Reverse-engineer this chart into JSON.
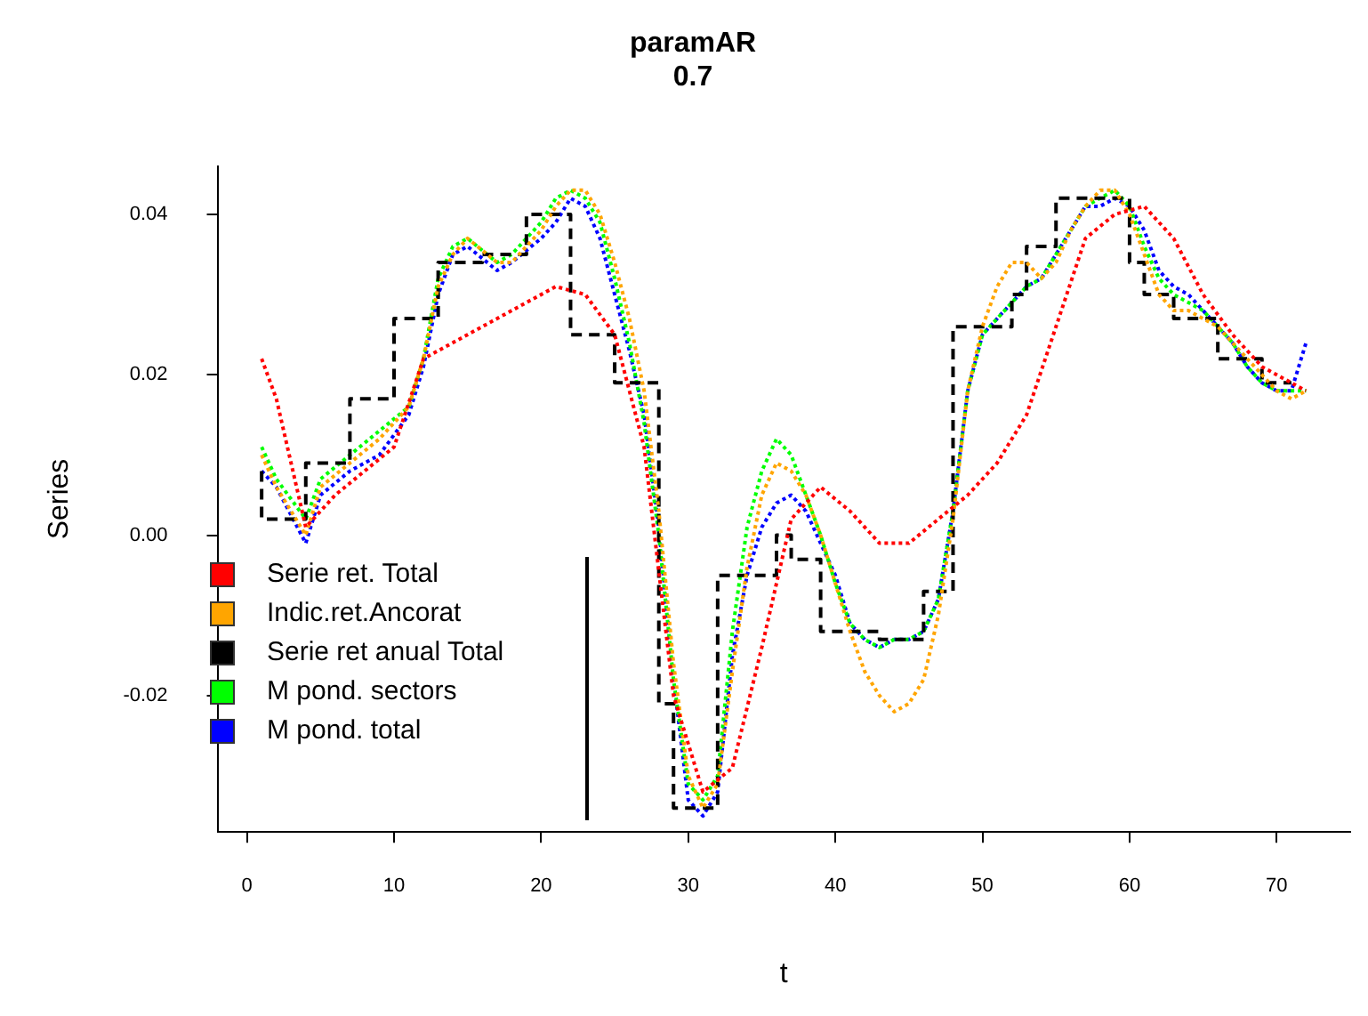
{
  "chart_data": {
    "type": "line",
    "title": "paramAR",
    "subtitle": "0.7",
    "xlabel": "t",
    "ylabel": "Series",
    "xlim": [
      -2,
      75
    ],
    "xticks": [
      0,
      10,
      20,
      30,
      40,
      50,
      60,
      70
    ],
    "ylim": [
      -0.037,
      0.046
    ],
    "yticks": [
      -0.02,
      {
        "value": 0,
        "label": "0.00"
      },
      0.02,
      0.04
    ],
    "grid": false,
    "legend": "bottom left",
    "marker": "none",
    "series": [
      {
        "name": "Serie ret. Total",
        "color": "#ff0000",
        "line_style": "dotted",
        "x": [
          1,
          2,
          3,
          4,
          6,
          8,
          10,
          12,
          15,
          18,
          21,
          23,
          25,
          27,
          29,
          31,
          33,
          35,
          37,
          39,
          41,
          43,
          45,
          47,
          49,
          51,
          53,
          55,
          57,
          59,
          61,
          63,
          65,
          67,
          69,
          72
        ],
        "values": [
          0.022,
          0.017,
          0.009,
          0.001,
          0.005,
          0.008,
          0.011,
          0.022,
          0.025,
          0.028,
          0.031,
          0.03,
          0.025,
          0.011,
          -0.02,
          -0.032,
          -0.029,
          -0.014,
          0.002,
          0.006,
          0.003,
          -0.001,
          -0.001,
          0.002,
          0.005,
          0.009,
          0.015,
          0.026,
          0.037,
          0.04,
          0.041,
          0.037,
          0.03,
          0.025,
          0.021,
          0.018
        ]
      },
      {
        "name": "Indic.ret.Ancorat",
        "color": "#ffa500",
        "line_style": "dotted",
        "x": [
          1,
          2,
          4,
          5,
          7,
          9,
          11,
          12,
          13,
          14,
          15,
          17,
          18,
          20,
          21,
          22,
          23,
          24,
          25,
          26,
          27,
          28,
          29,
          30,
          31,
          32,
          33,
          34,
          35,
          36,
          37,
          38,
          39,
          40,
          41,
          42,
          43,
          44,
          45,
          46,
          47,
          48,
          49,
          50,
          51,
          52,
          53,
          54,
          55,
          56,
          57,
          58,
          59,
          60,
          61,
          62,
          63,
          64,
          65,
          66,
          67,
          68,
          69,
          70,
          71,
          72
        ],
        "values": [
          0.01,
          0.006,
          0.0,
          0.006,
          0.009,
          0.012,
          0.016,
          0.022,
          0.031,
          0.035,
          0.037,
          0.034,
          0.034,
          0.038,
          0.041,
          0.043,
          0.043,
          0.04,
          0.034,
          0.027,
          0.018,
          0.003,
          -0.016,
          -0.03,
          -0.034,
          -0.031,
          -0.017,
          -0.004,
          0.005,
          0.009,
          0.008,
          0.005,
          0.0,
          -0.006,
          -0.012,
          -0.017,
          -0.02,
          -0.022,
          -0.021,
          -0.018,
          -0.01,
          0.002,
          0.018,
          0.026,
          0.031,
          0.034,
          0.034,
          0.032,
          0.034,
          0.038,
          0.041,
          0.043,
          0.043,
          0.04,
          0.035,
          0.03,
          0.028,
          0.028,
          0.027,
          0.026,
          0.024,
          0.022,
          0.02,
          0.018,
          0.017,
          0.018
        ]
      },
      {
        "name": "Serie ret anual Total",
        "color": "#000000",
        "type": "step",
        "line_style": "dashed",
        "x": [
          1,
          4,
          7,
          10,
          13,
          16,
          19,
          22,
          25,
          26,
          28,
          29,
          30,
          32,
          33,
          36,
          37,
          39,
          40,
          43,
          46,
          48,
          49,
          52,
          53,
          55,
          57,
          60,
          61,
          63,
          66,
          69,
          71
        ],
        "values": [
          0.008,
          0.002,
          0.009,
          0.017,
          0.027,
          0.034,
          0.035,
          0.04,
          0.025,
          0.019,
          0.019,
          -0.021,
          -0.034,
          -0.034,
          -0.005,
          -0.005,
          0.0,
          -0.003,
          -0.012,
          -0.012,
          -0.013,
          -0.007,
          0.026,
          0.026,
          0.03,
          0.036,
          0.042,
          0.042,
          0.034,
          0.03,
          0.027,
          0.022,
          0.019
        ]
      },
      {
        "name": "M pond. sectors",
        "color": "#00ff00",
        "line_style": "dotted",
        "x": [
          1,
          2,
          4,
          5,
          7,
          9,
          11,
          12,
          13,
          14,
          15,
          17,
          18,
          20,
          21,
          22,
          23,
          24,
          25,
          26,
          27,
          28,
          29,
          30,
          31,
          32,
          33,
          34,
          35,
          36,
          37,
          38,
          39,
          40,
          41,
          42,
          43,
          44,
          45,
          46,
          47,
          48,
          49,
          50,
          51,
          52,
          53,
          54,
          55,
          56,
          57,
          58,
          59,
          60,
          61,
          62,
          63,
          64,
          65,
          66,
          67,
          68,
          69,
          70,
          71,
          72
        ],
        "values": [
          0.011,
          0.007,
          0.002,
          0.007,
          0.01,
          0.013,
          0.016,
          0.022,
          0.032,
          0.036,
          0.037,
          0.034,
          0.035,
          0.039,
          0.042,
          0.043,
          0.042,
          0.039,
          0.032,
          0.024,
          0.014,
          0.0,
          -0.018,
          -0.031,
          -0.033,
          -0.03,
          -0.012,
          0.001,
          0.008,
          0.012,
          0.01,
          0.005,
          0.0,
          -0.006,
          -0.011,
          -0.013,
          -0.014,
          -0.013,
          -0.013,
          -0.012,
          -0.008,
          0.003,
          0.018,
          0.025,
          0.027,
          0.029,
          0.031,
          0.032,
          0.035,
          0.038,
          0.041,
          0.042,
          0.043,
          0.041,
          0.036,
          0.032,
          0.03,
          0.029,
          0.028,
          0.026,
          0.024,
          0.021,
          0.019,
          0.018,
          0.018,
          0.018
        ]
      },
      {
        "name": "M pond. total",
        "color": "#0000ff",
        "line_style": "dotted",
        "x": [
          1,
          2,
          4,
          5,
          7,
          9,
          11,
          12,
          13,
          14,
          15,
          17,
          18,
          20,
          21,
          22,
          23,
          24,
          25,
          26,
          27,
          28,
          29,
          30,
          31,
          32,
          33,
          34,
          35,
          36,
          37,
          38,
          39,
          40,
          41,
          42,
          43,
          44,
          45,
          46,
          47,
          48,
          49,
          50,
          51,
          52,
          53,
          54,
          55,
          56,
          57,
          58,
          59,
          60,
          61,
          62,
          63,
          64,
          65,
          66,
          67,
          68,
          69,
          70,
          71,
          72
        ],
        "values": [
          0.008,
          0.006,
          -0.001,
          0.005,
          0.008,
          0.01,
          0.015,
          0.021,
          0.03,
          0.035,
          0.036,
          0.033,
          0.034,
          0.037,
          0.039,
          0.042,
          0.041,
          0.037,
          0.03,
          0.023,
          0.015,
          0.001,
          -0.018,
          -0.033,
          -0.035,
          -0.032,
          -0.015,
          -0.005,
          0.001,
          0.004,
          0.005,
          0.003,
          -0.001,
          -0.005,
          -0.011,
          -0.013,
          -0.014,
          -0.013,
          -0.013,
          -0.012,
          -0.008,
          0.003,
          0.018,
          0.025,
          0.027,
          0.029,
          0.031,
          0.032,
          0.035,
          0.038,
          0.041,
          0.041,
          0.042,
          0.041,
          0.038,
          0.033,
          0.031,
          0.03,
          0.028,
          0.026,
          0.024,
          0.021,
          0.019,
          0.018,
          0.018,
          0.024
        ]
      }
    ]
  }
}
